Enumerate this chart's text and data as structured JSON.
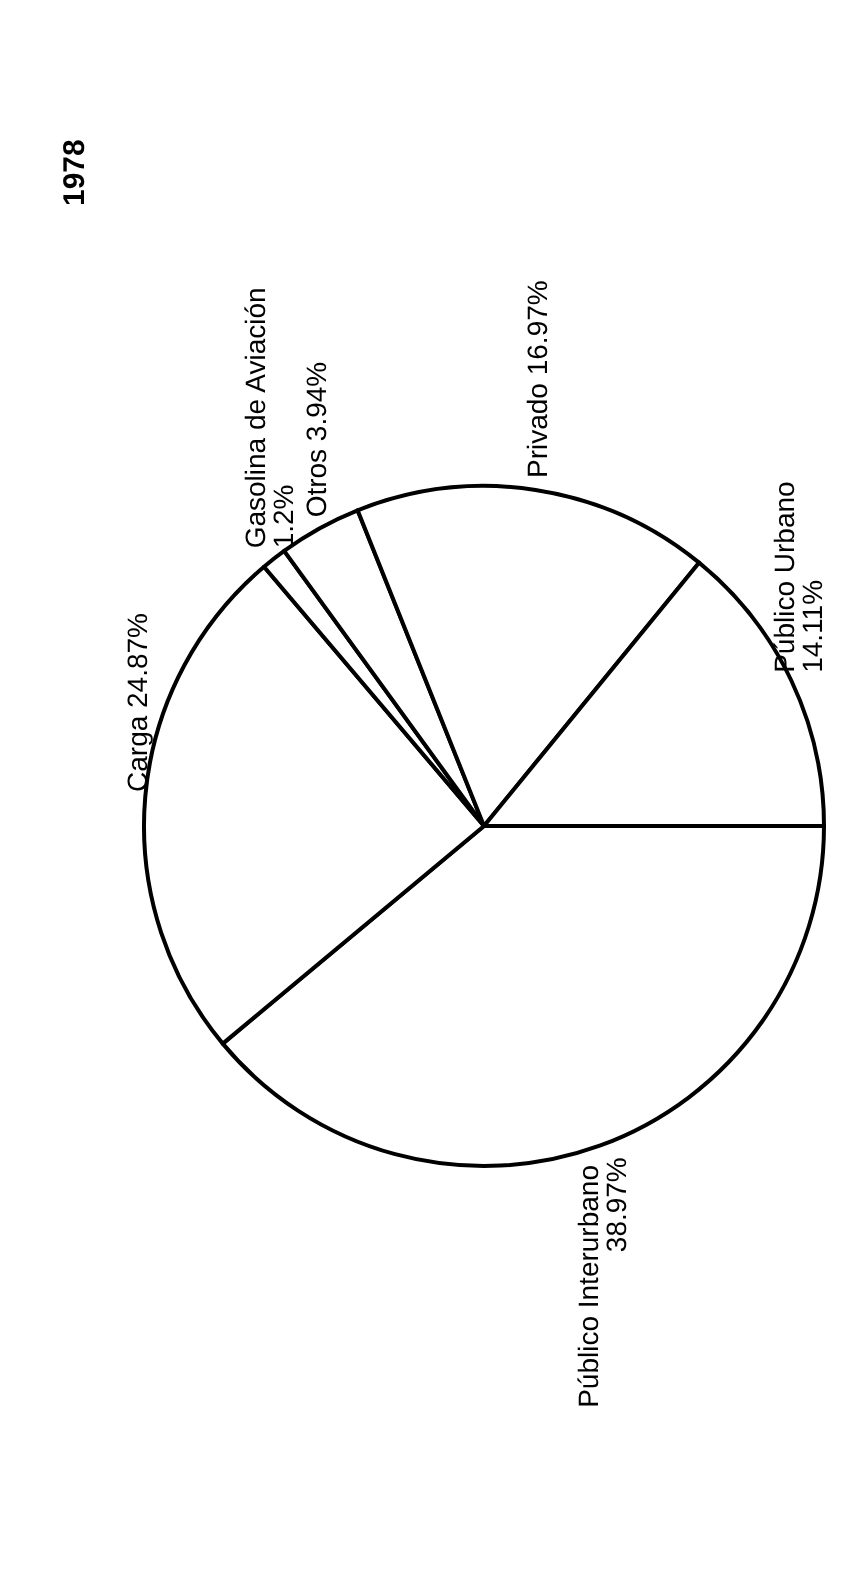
{
  "chart_data": {
    "type": "pie",
    "title": "1978",
    "categories": [
      "Público Interurbano",
      "Carga",
      "Gasolina de Aviación",
      "Otros",
      "Privado",
      "Público Urbano"
    ],
    "values": [
      38.97,
      24.87,
      1.2,
      3.94,
      16.97,
      14.11
    ],
    "value_labels": [
      "38.97%",
      "24.87%",
      "1.2%",
      "3.94%",
      "16.97%",
      "14.11%"
    ],
    "colors": [
      "#ffffff",
      "#ffffff",
      "#ffffff",
      "#ffffff",
      "#ffffff",
      "#ffffff"
    ],
    "legend": false
  }
}
